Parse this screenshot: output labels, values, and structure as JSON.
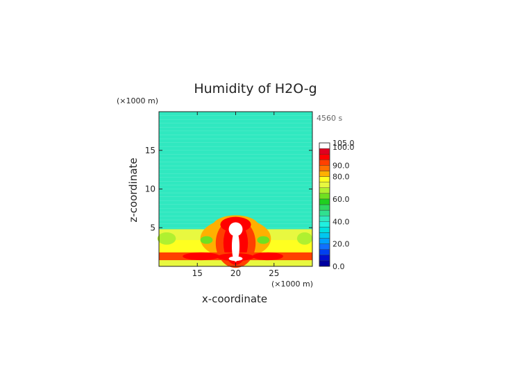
{
  "chart_data": {
    "type": "heatmap",
    "title": "Humidity of H2O-g",
    "time_label": "4560 s",
    "xlabel": "x-coordinate",
    "ylabel": "z-coordinate",
    "x_unit": "(×1000 m)",
    "y_unit": "(×1000 m)",
    "xlim": [
      10,
      30
    ],
    "ylim": [
      0,
      20
    ],
    "x_ticks": [
      "15",
      "20",
      "25"
    ],
    "x_tick_values": [
      15,
      20,
      25
    ],
    "y_ticks": [
      "5",
      "10",
      "15"
    ],
    "y_tick_values": [
      5,
      10,
      15
    ],
    "colorbar": {
      "min": 0,
      "max": 105,
      "labels": [
        "105.0",
        "100.0",
        "90.0",
        "80.0",
        "60.0",
        "40.0",
        "20.0",
        "0.0"
      ],
      "label_values": [
        105,
        100,
        90,
        80,
        60,
        40,
        20,
        0
      ],
      "levels": [
        {
          "from": 0,
          "to": 5,
          "color": "#0000a0"
        },
        {
          "from": 5,
          "to": 10,
          "color": "#0010d0"
        },
        {
          "from": 10,
          "to": 15,
          "color": "#0040f0"
        },
        {
          "from": 15,
          "to": 20,
          "color": "#1070ff"
        },
        {
          "from": 20,
          "to": 25,
          "color": "#00a0ff"
        },
        {
          "from": 25,
          "to": 30,
          "color": "#00c8f0"
        },
        {
          "from": 30,
          "to": 35,
          "color": "#00e0e0"
        },
        {
          "from": 35,
          "to": 40,
          "color": "#20f0e0"
        },
        {
          "from": 40,
          "to": 45,
          "color": "#30e8c0"
        },
        {
          "from": 45,
          "to": 50,
          "color": "#30e090"
        },
        {
          "from": 50,
          "to": 55,
          "color": "#30d860"
        },
        {
          "from": 55,
          "to": 60,
          "color": "#20d020"
        },
        {
          "from": 60,
          "to": 65,
          "color": "#70e020"
        },
        {
          "from": 65,
          "to": 70,
          "color": "#b0f030"
        },
        {
          "from": 70,
          "to": 75,
          "color": "#e8f840"
        },
        {
          "from": 75,
          "to": 80,
          "color": "#ffff20"
        },
        {
          "from": 80,
          "to": 85,
          "color": "#ffb000"
        },
        {
          "from": 85,
          "to": 90,
          "color": "#ff7000"
        },
        {
          "from": 90,
          "to": 95,
          "color": "#ff4000"
        },
        {
          "from": 95,
          "to": 100,
          "color": "#ff0000"
        },
        {
          "from": 100,
          "to": 105,
          "color": "#e00020"
        },
        {
          "from": 105,
          "to": 110,
          "color": "#ffffff"
        }
      ]
    },
    "background_value": 42,
    "fields": [
      {
        "shape": "band",
        "zmin": 0,
        "zmax": 4.8,
        "value": 72
      },
      {
        "shape": "band",
        "zmin": 1.4,
        "zmax": 3.4,
        "value": 78
      },
      {
        "shape": "ellipse",
        "cx": 20,
        "cz": 3.6,
        "rx": 4.6,
        "rz": 2.6,
        "value": 82
      },
      {
        "shape": "ellipse",
        "cx": 20,
        "cz": 5.2,
        "rx": 3.0,
        "rz": 1.4,
        "value": 84
      },
      {
        "shape": "ellipse",
        "cx": 20,
        "cz": 3.0,
        "rx": 2.6,
        "rz": 3.2,
        "value": 90
      },
      {
        "shape": "ellipse",
        "cx": 20,
        "cz": 5.4,
        "rx": 2.0,
        "rz": 1.0,
        "value": 96
      },
      {
        "shape": "ellipse",
        "cx": 20,
        "cz": 3.0,
        "rx": 1.6,
        "rz": 2.8,
        "value": 98
      },
      {
        "shape": "band",
        "zmin": 0.8,
        "zmax": 1.8,
        "value": 92
      },
      {
        "shape": "ellipse",
        "cx": 15.5,
        "cz": 1.3,
        "rx": 2.4,
        "rz": 0.5,
        "value": 97
      },
      {
        "shape": "ellipse",
        "cx": 24.2,
        "cz": 1.3,
        "rx": 2.0,
        "rz": 0.5,
        "value": 97
      },
      {
        "shape": "ellipse",
        "cx": 20,
        "cz": 1.2,
        "rx": 2.4,
        "rz": 0.5,
        "value": 97
      },
      {
        "shape": "ellipse",
        "cx": 20,
        "cz": 4.8,
        "rx": 0.9,
        "rz": 0.9,
        "value": 106
      },
      {
        "shape": "ellipse",
        "cx": 20,
        "cz": 2.6,
        "rx": 0.5,
        "rz": 2.0,
        "value": 106
      },
      {
        "shape": "ellipse",
        "cx": 20,
        "cz": 1.0,
        "rx": 0.9,
        "rz": 0.3,
        "value": 106
      },
      {
        "shape": "ellipse",
        "cx": 11.0,
        "cz": 3.6,
        "rx": 1.2,
        "rz": 0.8,
        "value": 66
      },
      {
        "shape": "ellipse",
        "cx": 29.0,
        "cz": 3.6,
        "rx": 1.0,
        "rz": 0.8,
        "value": 66
      },
      {
        "shape": "ellipse",
        "cx": 16.2,
        "cz": 3.4,
        "rx": 0.8,
        "rz": 0.5,
        "value": 64
      },
      {
        "shape": "ellipse",
        "cx": 23.6,
        "cz": 3.4,
        "rx": 0.8,
        "rz": 0.5,
        "value": 64
      }
    ]
  },
  "colors": {
    "axis": "#222222",
    "grid_line": "#ffffff"
  }
}
